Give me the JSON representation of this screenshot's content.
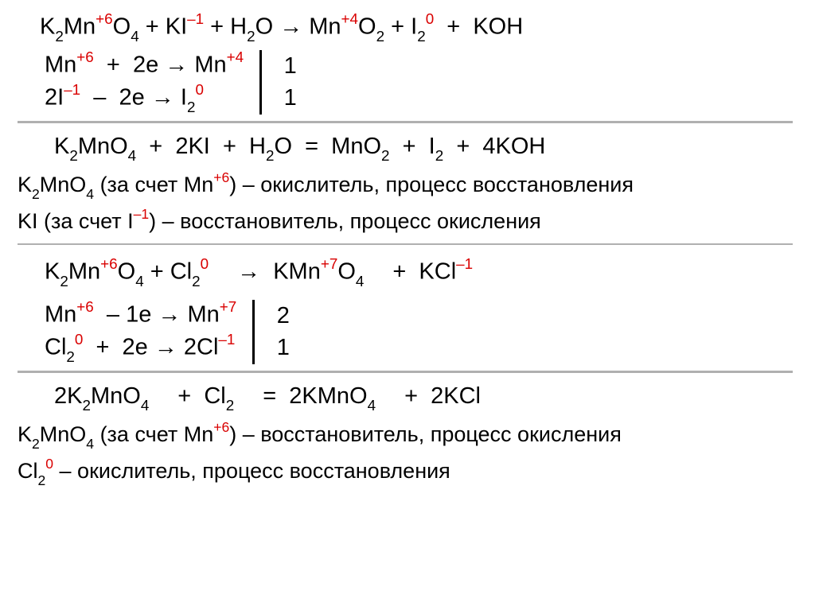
{
  "colors": {
    "red": "#d90000",
    "text": "#000000",
    "rule": "#b0b0b0",
    "bg": "#ffffff"
  },
  "r1": {
    "title_html": "K<span class='sub'>2</span>Mn<span class='sup red'>+6</span>O<span class='sub'>4</span> + KI<span class='sup red'>–1</span> + H<span class='sub'>2</span>O → Mn<span class='sup red'>+4</span>O<span class='sub'>2</span> + I<span class='sub'>2</span><span class='sup red'>0</span>&nbsp;&nbsp;+&nbsp;&nbsp;KOH",
    "half1_html": "Mn<span class='sup red'>+6</span>&nbsp;&nbsp;+&nbsp;&nbsp;2e → Mn<span class='sup red'>+4</span>",
    "half2_html": "2I<span class='sup red'>–1</span>&nbsp;&nbsp;–&nbsp;&nbsp;2e → I<span class='sub'>2</span><span class='sup red'>0</span>",
    "coef1": "1",
    "coef2": "1",
    "balanced_html": "K<span class='sub'>2</span>MnO<span class='sub'>4</span>&nbsp;&nbsp;+&nbsp;&nbsp;2KI&nbsp;&nbsp;+&nbsp;&nbsp;H<span class='sub'>2</span>O&nbsp;&nbsp;=&nbsp;&nbsp;MnO<span class='sub'>2</span>&nbsp;&nbsp;+&nbsp;&nbsp;I<span class='sub'>2</span>&nbsp;&nbsp;+&nbsp;&nbsp;4KOH",
    "note1_html": "K<span class='sub'>2</span>MnO<span class='sub'>4</span> (за счет Mn<span class='sup red'>+6</span>) – окислитель, процесс восстановления",
    "note2_html": "KI (за счет I<span class='sup red'>–1</span>) – восстановитель, процесс окисления"
  },
  "r2": {
    "title_html": "K<span class='sub'>2</span>Mn<span class='sup red'>+6</span>O<span class='sub'>4</span> + Cl<span class='sub'>2</span><span class='sup red'>0</span><span class='sp gap-l'></span>→&nbsp;&nbsp;KMn<span class='sup red'>+7</span>O<span class='sub'>4</span><span class='sp gap-l'></span>+&nbsp;&nbsp;KCl<span class='sup red'>–1</span>",
    "half1_html": "Mn<span class='sup red'>+6</span>&nbsp;&nbsp;–&nbsp;1e → Mn<span class='sup red'>+7</span>",
    "half2_html": "Cl<span class='sub'>2</span><span class='sup red'>0</span>&nbsp;&nbsp;+&nbsp;&nbsp;2e → 2Cl<span class='sup red'>–1</span>",
    "coef1": "2",
    "coef2": "1",
    "balanced_html": "2K<span class='sub'>2</span>MnO<span class='sub'>4</span><span class='sp gap-l'></span>+&nbsp;&nbsp;Cl<span class='sub'>2</span><span class='sp gap-l'></span>=&nbsp;&nbsp;2KMnO<span class='sub'>4</span><span class='sp gap-l'></span>+&nbsp;&nbsp;2KCl",
    "note1_html": "K<span class='sub'>2</span>MnO<span class='sub'>4</span> (за счет Mn<span class='sup red'>+6</span>) – восстановитель, процесс окисления",
    "note2_html": "Cl<span class='sub'>2</span><span class='sup red'>0</span> – окислитель, процесс восстановления"
  }
}
